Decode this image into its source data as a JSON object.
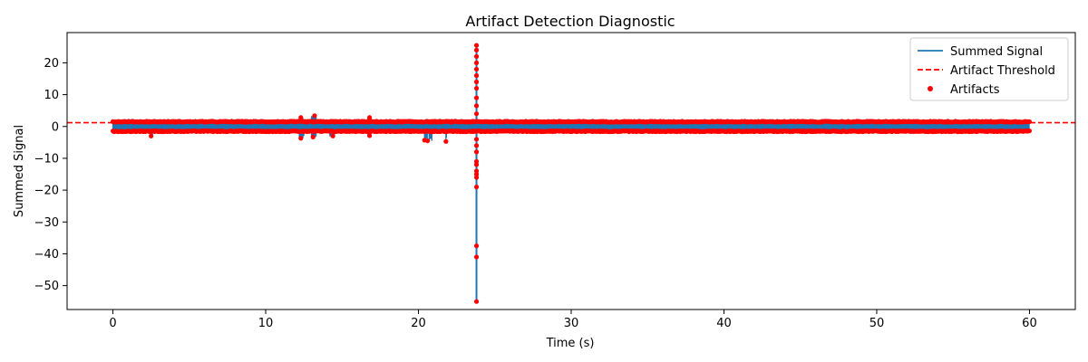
{
  "chart_data": {
    "type": "line",
    "title": "Artifact Detection Diagnostic",
    "xlabel": "Time (s)",
    "ylabel": "Summed Signal",
    "xlim": [
      -3,
      63
    ],
    "ylim": [
      -57.5,
      29.5
    ],
    "xticks": [
      0,
      10,
      20,
      30,
      40,
      50,
      60
    ],
    "xtick_labels": [
      "0",
      "10",
      "20",
      "30",
      "40",
      "50",
      "60"
    ],
    "yticks": [
      20,
      10,
      0,
      -10,
      -20,
      -30,
      -40,
      -50
    ],
    "ytick_labels": [
      "20",
      "10",
      "0",
      "−10",
      "−20",
      "−30",
      "−40",
      "−50"
    ],
    "grid": false,
    "legend_position": "top-right",
    "threshold": 1.2,
    "series": [
      {
        "name": "Summed Signal",
        "kind": "line",
        "color": "#1f77b4",
        "description": "dense oscillation between about -1.6 and 1.6 over 0–60 s with bursts",
        "segments": [
          {
            "x_start": 0.0,
            "x_end": 60.0,
            "ymin": -1.6,
            "ymax": 1.6
          },
          {
            "x_start": 2.5,
            "x_end": 2.6,
            "ymin": -3.0,
            "ymax": 1.8
          },
          {
            "x_start": 12.2,
            "x_end": 12.5,
            "ymin": -3.8,
            "ymax": 2.8
          },
          {
            "x_start": 13.0,
            "x_end": 13.3,
            "ymin": -3.4,
            "ymax": 3.4
          },
          {
            "x_start": 14.2,
            "x_end": 14.5,
            "ymin": -3.2,
            "ymax": 2.0
          },
          {
            "x_start": 16.7,
            "x_end": 16.9,
            "ymin": -3.0,
            "ymax": 2.8
          },
          {
            "x_start": 20.4,
            "x_end": 20.6,
            "ymin": -4.5,
            "ymax": 2.0
          },
          {
            "x_start": 20.7,
            "x_end": 20.9,
            "ymin": -4.5,
            "ymax": 1.8
          },
          {
            "x_start": 21.8,
            "x_end": 21.85,
            "ymin": -4.7,
            "ymax": 1.5
          },
          {
            "x_start": 23.78,
            "x_end": 23.82,
            "ymin": -55.0,
            "ymax": 25.5
          }
        ]
      },
      {
        "name": "Artifact Threshold",
        "kind": "hline",
        "color": "#ff0000",
        "style": "dashed",
        "y": 1.2
      },
      {
        "name": "Artifacts",
        "kind": "scatter",
        "color": "#ff0000",
        "description": "points where |signal| exceeds the threshold",
        "spike_points": [
          {
            "x": 23.8,
            "y": 25.5
          },
          {
            "x": 23.8,
            "y": 24.0
          },
          {
            "x": 23.8,
            "y": 22.0
          },
          {
            "x": 23.8,
            "y": 20.0
          },
          {
            "x": 23.8,
            "y": 18.0
          },
          {
            "x": 23.8,
            "y": 16.0
          },
          {
            "x": 23.8,
            "y": 14.0
          },
          {
            "x": 23.8,
            "y": 12.0
          },
          {
            "x": 23.8,
            "y": 9.0
          },
          {
            "x": 23.8,
            "y": 6.5
          },
          {
            "x": 23.8,
            "y": 4.0
          },
          {
            "x": 23.8,
            "y": -4.0
          },
          {
            "x": 23.8,
            "y": -6.0
          },
          {
            "x": 23.8,
            "y": -8.0
          },
          {
            "x": 23.8,
            "y": -11.0
          },
          {
            "x": 23.8,
            "y": -12.0
          },
          {
            "x": 23.8,
            "y": -14.0
          },
          {
            "x": 23.8,
            "y": -15.0
          },
          {
            "x": 23.8,
            "y": -16.0
          },
          {
            "x": 23.8,
            "y": -19.0
          },
          {
            "x": 23.8,
            "y": -37.5
          },
          {
            "x": 23.8,
            "y": -41.0
          },
          {
            "x": 23.8,
            "y": -55.0
          },
          {
            "x": 21.8,
            "y": -4.7
          },
          {
            "x": 20.6,
            "y": -4.5
          },
          {
            "x": 20.4,
            "y": -4.3
          },
          {
            "x": 12.3,
            "y": -3.7
          },
          {
            "x": 13.2,
            "y": 3.4
          },
          {
            "x": 13.1,
            "y": -3.3
          },
          {
            "x": 14.4,
            "y": -3.0
          },
          {
            "x": 16.8,
            "y": 2.8
          },
          {
            "x": 16.8,
            "y": -2.9
          },
          {
            "x": 2.5,
            "y": -3.0
          },
          {
            "x": 12.3,
            "y": 2.8
          }
        ]
      }
    ]
  }
}
